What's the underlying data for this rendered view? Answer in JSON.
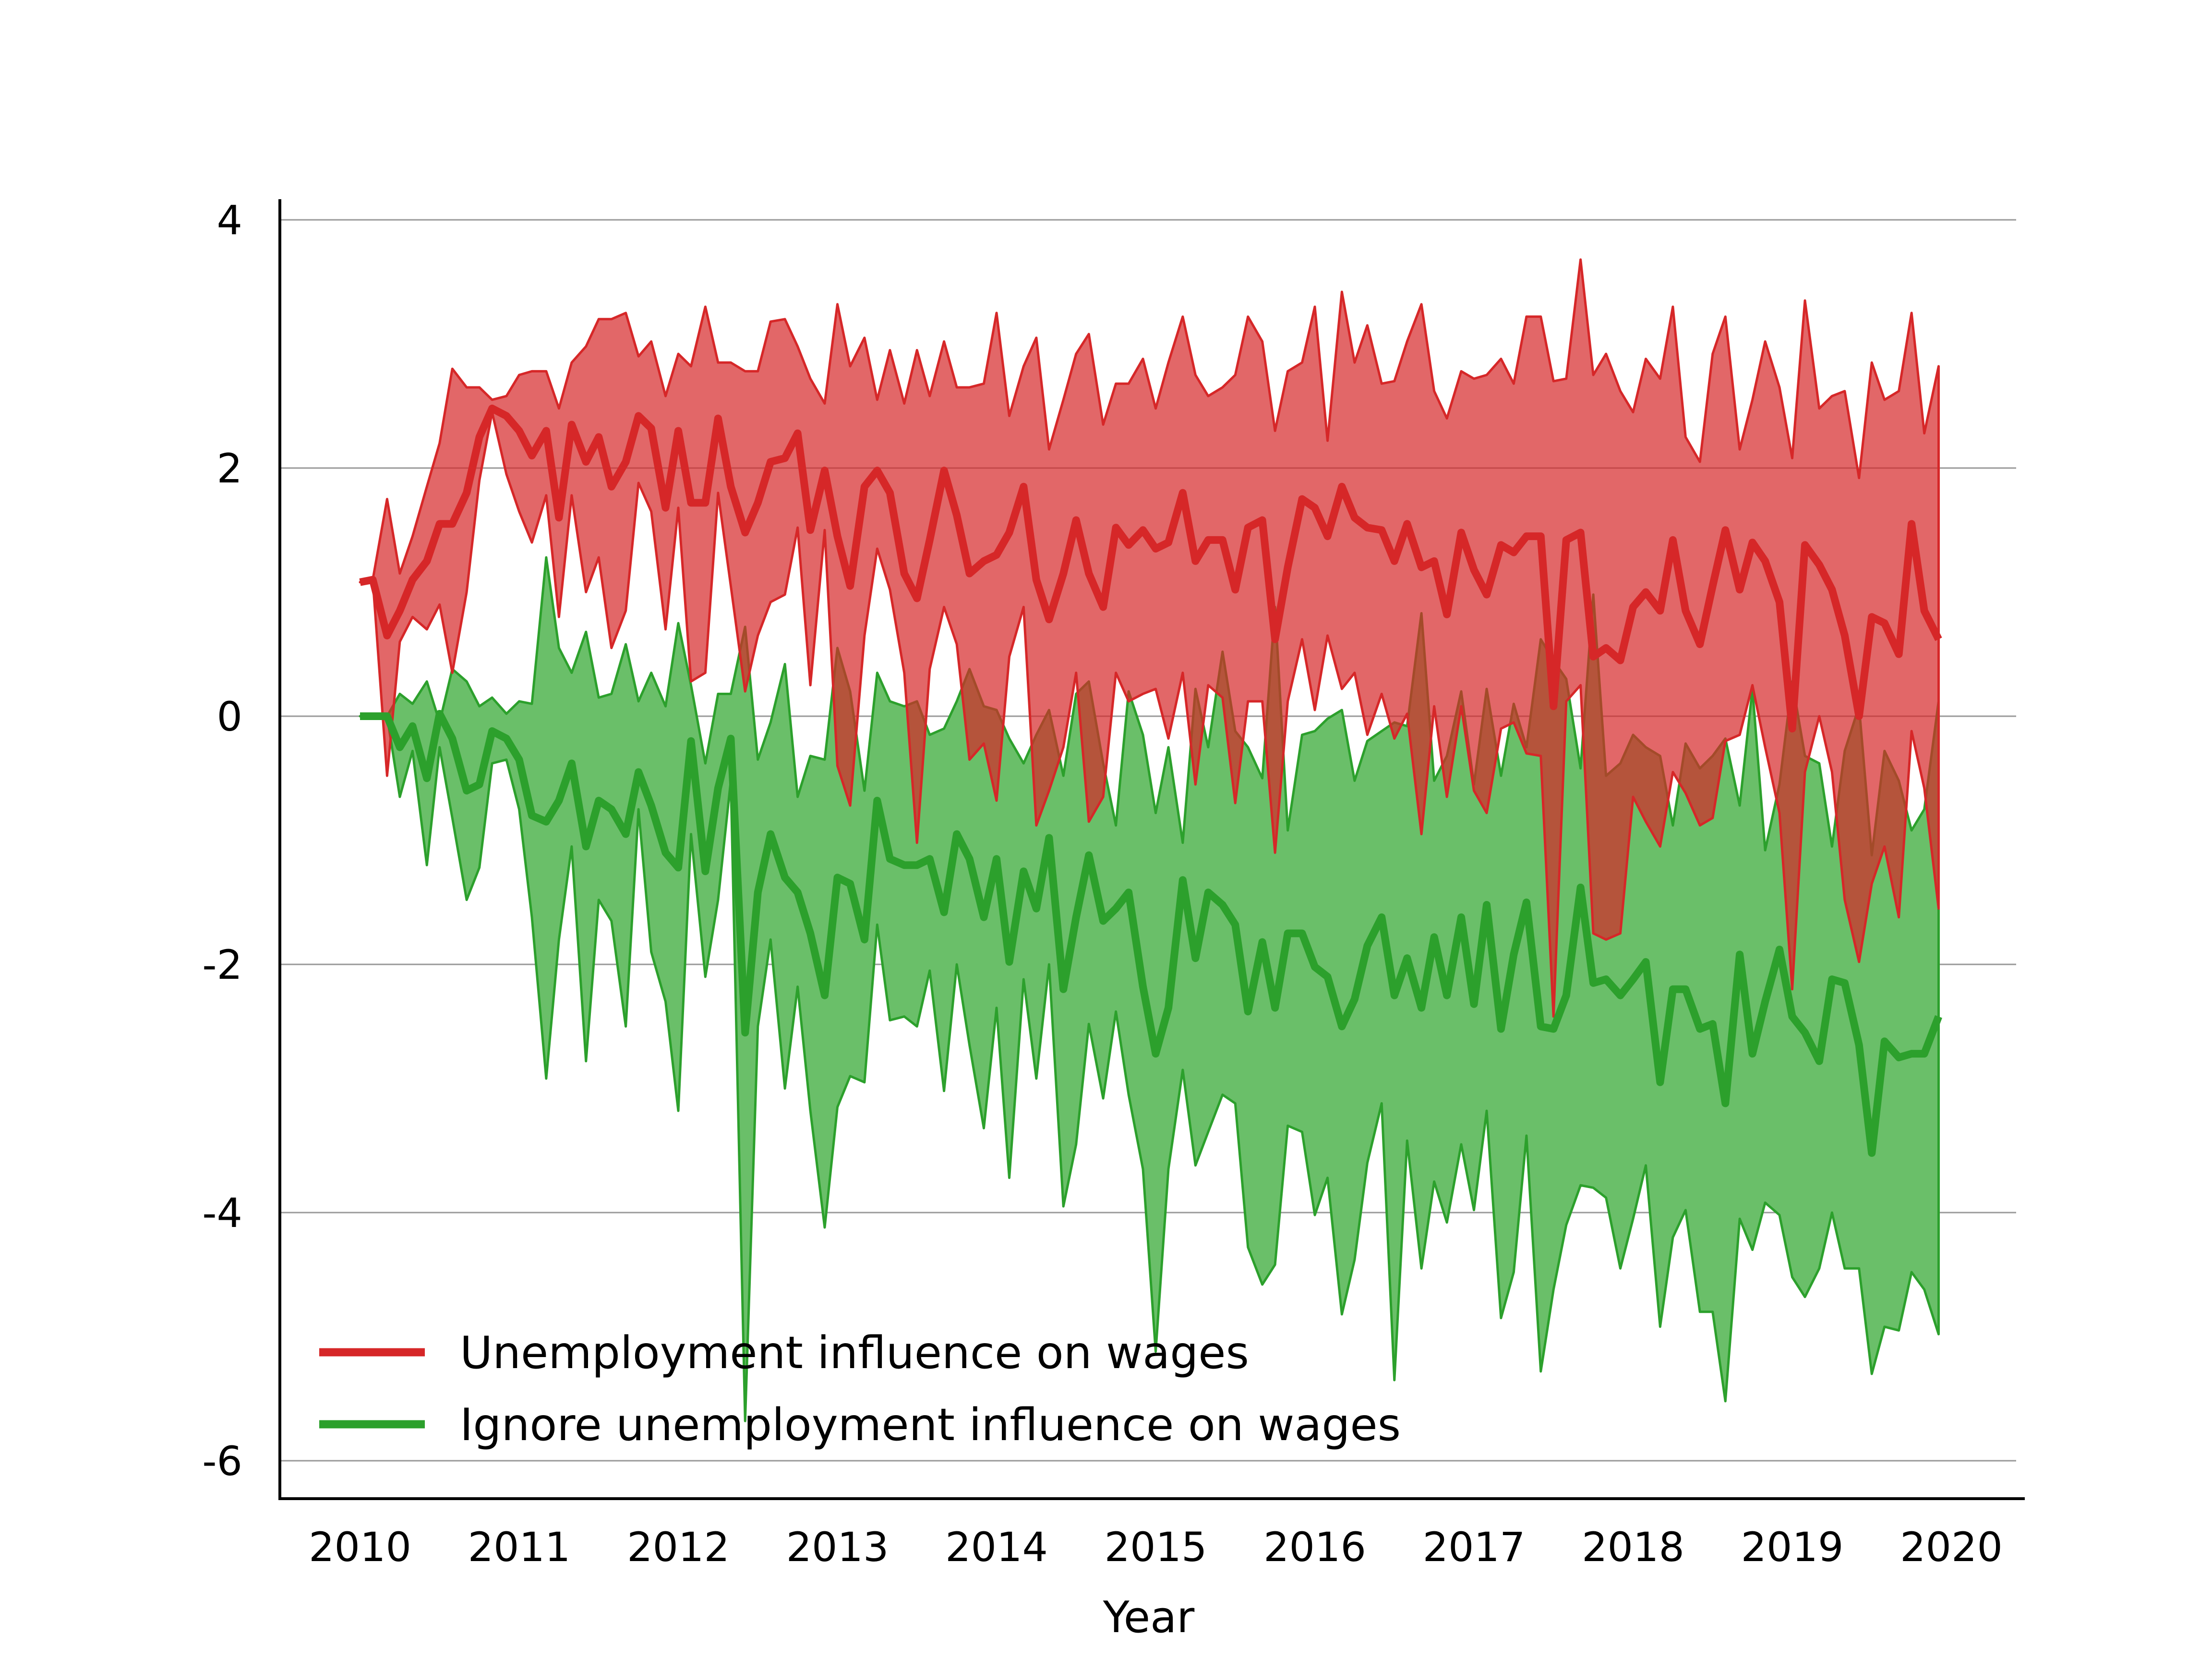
{
  "chart_data": {
    "type": "line",
    "title": "",
    "xlabel": "Year",
    "ylabel": "",
    "xlim": [
      2010,
      2020
    ],
    "ylim": [
      -6.3,
      4.2
    ],
    "grid": "horizontal",
    "legend_position": "bottom-left",
    "x_ticks": [
      "2010",
      "2011",
      "2012",
      "2013",
      "2014",
      "2015",
      "2016",
      "2017",
      "2018",
      "2019",
      "2020"
    ],
    "y_ticks": [
      "4",
      "2",
      "0",
      "-2",
      "-4",
      "-6"
    ],
    "x": [
      2010.0,
      2010.08,
      2010.17,
      2010.25,
      2010.33,
      2010.42,
      2010.5,
      2010.58,
      2010.67,
      2010.75,
      2010.83,
      2010.92,
      2011.0,
      2011.08,
      2011.17,
      2011.25,
      2011.33,
      2011.42,
      2011.5,
      2011.58,
      2011.67,
      2011.75,
      2011.83,
      2011.92,
      2012.0,
      2012.08,
      2012.17,
      2012.25,
      2012.33,
      2012.42,
      2012.5,
      2012.58,
      2012.67,
      2012.75,
      2012.83,
      2012.92,
      2013.0,
      2013.08,
      2013.17,
      2013.25,
      2013.33,
      2013.42,
      2013.5,
      2013.58,
      2013.67,
      2013.75,
      2013.83,
      2013.92,
      2014.0,
      2014.08,
      2014.17,
      2014.25,
      2014.33,
      2014.42,
      2014.5,
      2014.58,
      2014.67,
      2014.75,
      2014.83,
      2014.92,
      2015.0,
      2015.08,
      2015.17,
      2015.25,
      2015.33,
      2015.42,
      2015.5,
      2015.58,
      2015.67,
      2015.75,
      2015.83,
      2015.92,
      2016.0,
      2016.08,
      2016.17,
      2016.25,
      2016.33,
      2016.42,
      2016.5,
      2016.58,
      2016.67,
      2016.75,
      2016.83,
      2016.92,
      2017.0,
      2017.08,
      2017.17,
      2017.25,
      2017.33,
      2017.42,
      2017.5,
      2017.58,
      2017.67,
      2017.75,
      2017.83,
      2017.92,
      2018.0,
      2018.08,
      2018.17,
      2018.25,
      2018.33,
      2018.42,
      2018.5,
      2018.58,
      2018.67,
      2018.75,
      2018.83,
      2018.92,
      2019.0,
      2019.08,
      2019.17,
      2019.25,
      2019.33,
      2019.42,
      2019.5,
      2019.58,
      2019.67,
      2019.75,
      2019.83,
      2019.92
    ],
    "series": [
      {
        "name": "Unemployment influence on wages",
        "color": "#d62728",
        "fill_color": "#e06666",
        "values": [
          1.08,
          1.1,
          0.65,
          0.85,
          1.1,
          1.25,
          1.55,
          1.55,
          1.8,
          2.25,
          2.48,
          2.42,
          2.3,
          2.1,
          2.3,
          1.6,
          2.35,
          2.05,
          2.25,
          1.85,
          2.05,
          2.42,
          2.32,
          1.68,
          2.3,
          1.72,
          1.72,
          2.4,
          1.85,
          1.48,
          1.72,
          2.05,
          2.08,
          2.28,
          1.5,
          1.98,
          1.45,
          1.05,
          1.85,
          1.98,
          1.8,
          1.15,
          0.95,
          1.42,
          1.98,
          1.62,
          1.15,
          1.25,
          1.3,
          1.48,
          1.85,
          1.1,
          0.78,
          1.15,
          1.58,
          1.15,
          0.88,
          1.52,
          1.38,
          1.5,
          1.35,
          1.4,
          1.8,
          1.25,
          1.42,
          1.42,
          1.02,
          1.52,
          1.58,
          0.62,
          1.2,
          1.75,
          1.68,
          1.45,
          1.85,
          1.6,
          1.52,
          1.5,
          1.25,
          1.55,
          1.2,
          1.25,
          0.82,
          1.48,
          1.18,
          0.98,
          1.38,
          1.32,
          1.45,
          1.45,
          0.08,
          1.42,
          1.48,
          0.48,
          0.55,
          0.45,
          0.88,
          1.0,
          0.85,
          1.42,
          0.85,
          0.58,
          1.05,
          1.5,
          1.02,
          1.4,
          1.25,
          0.92,
          -0.1,
          1.38,
          1.22,
          1.02,
          0.65,
          0.0,
          0.8,
          0.75,
          0.5,
          1.55,
          0.85,
          0.62
        ],
        "lower": [
          1.08,
          1.1,
          -0.48,
          0.6,
          0.8,
          0.7,
          0.9,
          0.35,
          1.0,
          1.9,
          2.45,
          1.95,
          1.65,
          1.4,
          1.78,
          0.8,
          1.78,
          1.0,
          1.28,
          0.55,
          0.85,
          1.88,
          1.65,
          0.7,
          1.68,
          0.28,
          0.35,
          1.8,
          1.05,
          0.2,
          0.65,
          0.92,
          0.98,
          1.52,
          0.25,
          1.5,
          -0.4,
          -0.72,
          0.65,
          1.35,
          1.02,
          0.35,
          -1.02,
          0.38,
          0.88,
          0.58,
          -0.35,
          -0.22,
          -0.68,
          0.48,
          0.88,
          -0.88,
          -0.6,
          -0.25,
          0.35,
          -0.85,
          -0.65,
          0.35,
          0.12,
          0.18,
          0.22,
          -0.18,
          0.35,
          -0.55,
          0.25,
          0.15,
          -0.7,
          0.12,
          0.12,
          -1.1,
          0.12,
          0.62,
          0.05,
          0.65,
          0.22,
          0.35,
          -0.15,
          0.18,
          -0.18,
          0.02,
          -0.95,
          0.08,
          -0.65,
          0.08,
          -0.6,
          -0.78,
          -0.1,
          -0.05,
          -0.3,
          -0.32,
          -2.42,
          0.12,
          0.25,
          -1.75,
          -1.8,
          -1.75,
          -0.65,
          -0.85,
          -1.05,
          -0.45,
          -0.62,
          -0.88,
          -0.82,
          -0.2,
          -0.15,
          0.25,
          -0.25,
          -0.78,
          -2.2,
          -0.45,
          0.0,
          -0.45,
          -1.48,
          -1.98,
          -1.35,
          -1.05,
          -1.62,
          -0.12,
          -0.58,
          -1.55
        ]
      },
      {
        "name": "Ignore unemployment influence on wages",
        "color": "#2ca02c",
        "fill_color": "#6abf69",
        "values": [
          0.0,
          0.0,
          0.0,
          -0.25,
          -0.08,
          -0.5,
          0.02,
          -0.18,
          -0.6,
          -0.55,
          -0.12,
          -0.18,
          -0.35,
          -0.8,
          -0.85,
          -0.68,
          -0.38,
          -1.05,
          -0.68,
          -0.75,
          -0.95,
          -0.45,
          -0.72,
          -1.1,
          -1.22,
          -0.2,
          -1.25,
          -0.58,
          -0.18,
          -2.55,
          -1.42,
          -0.95,
          -1.3,
          -1.42,
          -1.75,
          -2.25,
          -1.3,
          -1.35,
          -1.8,
          -0.68,
          -1.15,
          -1.2,
          -1.2,
          -1.15,
          -1.58,
          -0.95,
          -1.15,
          -1.62,
          -1.15,
          -1.98,
          -1.25,
          -1.55,
          -0.98,
          -2.2,
          -1.62,
          -1.12,
          -1.65,
          -1.55,
          -1.42,
          -2.18,
          -2.72,
          -2.35,
          -1.32,
          -1.95,
          -1.42,
          -1.52,
          -1.68,
          -2.38,
          -1.82,
          -2.35,
          -1.75,
          -1.75,
          -2.02,
          -2.1,
          -2.5,
          -2.28,
          -1.85,
          -1.62,
          -2.25,
          -1.95,
          -2.35,
          -1.78,
          -2.25,
          -1.62,
          -2.32,
          -1.52,
          -2.52,
          -1.92,
          -1.5,
          -2.5,
          -2.52,
          -2.25,
          -1.38,
          -2.15,
          -2.12,
          -2.25,
          -2.12,
          -1.98,
          -2.95,
          -2.2,
          -2.2,
          -2.52,
          -2.48,
          -3.12,
          -1.92,
          -2.72,
          -2.3,
          -1.88,
          -2.42,
          -2.55,
          -2.78,
          -2.12,
          -2.15,
          -2.65,
          -3.52,
          -2.62,
          -2.75,
          -2.72,
          -2.72,
          -2.42
        ],
        "lower": [
          0.0,
          0.0,
          0.0,
          -0.65,
          -0.28,
          -1.2,
          -0.25,
          -0.82,
          -1.48,
          -1.22,
          -0.38,
          -0.35,
          -0.75,
          -1.62,
          -2.92,
          -1.8,
          -1.05,
          -2.78,
          -1.48,
          -1.65,
          -2.5,
          -0.75,
          -1.9,
          -2.3,
          -3.18,
          -0.95,
          -2.1,
          -1.48,
          -0.52,
          -5.68,
          -2.5,
          -1.8,
          -3.0,
          -2.18,
          -3.18,
          -4.12,
          -3.15,
          -2.9,
          -2.95,
          -1.68,
          -2.45,
          -2.42,
          -2.5,
          -2.05,
          -3.02,
          -2.0,
          -2.65,
          -3.32,
          -2.35,
          -3.72,
          -2.12,
          -2.92,
          -2.0,
          -3.95,
          -3.45,
          -2.48,
          -3.08,
          -2.38,
          -3.05,
          -3.65,
          -5.12,
          -3.65,
          -2.85,
          -3.62,
          -3.35,
          -3.05,
          -3.12,
          -4.28,
          -4.58,
          -4.42,
          -3.3,
          -3.35,
          -4.02,
          -3.72,
          -4.82,
          -4.38,
          -3.6,
          -3.12,
          -5.35,
          -3.42,
          -4.45,
          -3.75,
          -4.08,
          -3.45,
          -3.98,
          -3.18,
          -4.85,
          -4.48,
          -3.38,
          -5.28,
          -4.62,
          -4.1,
          -3.78,
          -3.8,
          -3.88,
          -4.45,
          -4.05,
          -3.62,
          -4.92,
          -4.2,
          -3.98,
          -4.8,
          -4.8,
          -5.52,
          -4.05,
          -4.3,
          -3.92,
          -4.02,
          -4.52,
          -4.68,
          -4.45,
          -4.0,
          -4.45,
          -4.45,
          -5.3,
          -4.92,
          -4.95,
          -4.48,
          -4.62,
          -4.98
        ],
        "upper": [
          0.0,
          0.0,
          0.0,
          0.18,
          0.1,
          0.28,
          -0.05,
          0.38,
          0.28,
          0.08,
          0.15,
          0.02,
          0.12,
          0.1,
          1.28,
          0.55,
          0.35,
          0.68,
          0.15,
          0.18,
          0.58,
          0.12,
          0.35,
          0.08,
          0.75,
          0.25,
          -0.38,
          0.18,
          0.18,
          0.72,
          -0.35,
          -0.05,
          0.42,
          -0.65,
          -0.32,
          -0.35,
          0.55,
          0.2,
          -0.6,
          0.35,
          0.12,
          0.08,
          0.12,
          -0.15,
          -0.1,
          0.12,
          0.38,
          0.08,
          0.05,
          -0.18,
          -0.38,
          -0.15,
          0.05,
          -0.48,
          0.18,
          0.28,
          -0.38,
          -0.88,
          0.2,
          -0.15,
          -0.78,
          -0.25,
          -1.02,
          0.22,
          -0.25,
          0.52,
          -0.12,
          -0.25,
          -0.5,
          0.88,
          -0.92,
          -0.15,
          -0.12,
          -0.02,
          0.05,
          -0.52,
          -0.2,
          -0.12,
          -0.05,
          -0.08,
          0.83,
          -0.52,
          -0.32,
          0.2,
          -0.55,
          0.22,
          -0.48,
          0.1,
          -0.25,
          0.62,
          0.45,
          0.3,
          -0.42,
          0.98,
          -0.48,
          -0.38,
          -0.15,
          -0.25,
          -0.32,
          -0.88,
          -0.22,
          -0.42,
          -0.32,
          -0.18,
          -0.72,
          0.22,
          -1.08,
          -0.55,
          0.28,
          -0.32,
          -0.38,
          -1.05,
          -0.28,
          0.08,
          -1.12,
          -0.28,
          -0.52,
          -0.92,
          -0.75,
          0.12
        ]
      }
    ],
    "red_upper": [
      1.08,
      1.1,
      1.75,
      1.15,
      1.45,
      1.85,
      2.2,
      2.8,
      2.65,
      2.65,
      2.55,
      2.58,
      2.75,
      2.78,
      2.78,
      2.48,
      2.85,
      2.98,
      3.2,
      3.2,
      3.25,
      2.9,
      3.02,
      2.58,
      2.92,
      2.82,
      3.3,
      2.85,
      2.85,
      2.78,
      2.78,
      3.18,
      3.2,
      2.98,
      2.72,
      2.52,
      3.32,
      2.82,
      3.05,
      2.55,
      2.95,
      2.52,
      2.95,
      2.58,
      3.02,
      2.65,
      2.65,
      2.68,
      3.25,
      2.42,
      2.82,
      3.05,
      2.15,
      2.55,
      2.92,
      3.08,
      2.35,
      2.68,
      2.68,
      2.88,
      2.48,
      2.85,
      3.22,
      2.75,
      2.58,
      2.65,
      2.75,
      3.22,
      3.02,
      2.3,
      2.78,
      2.85,
      3.3,
      2.22,
      3.42,
      2.85,
      3.15,
      2.68,
      2.7,
      3.02,
      3.32,
      2.62,
      2.4,
      2.78,
      2.72,
      2.75,
      2.88,
      2.68,
      3.22,
      3.22,
      2.7,
      2.72,
      3.68,
      2.75,
      2.92,
      2.62,
      2.45,
      2.88,
      2.72,
      3.3,
      2.25,
      2.05,
      2.92,
      3.22,
      2.15,
      2.55,
      3.02,
      2.65,
      2.08,
      3.35,
      2.48,
      2.58,
      2.62,
      1.92,
      2.85,
      2.55,
      2.62,
      3.25,
      2.28,
      2.82
    ]
  }
}
